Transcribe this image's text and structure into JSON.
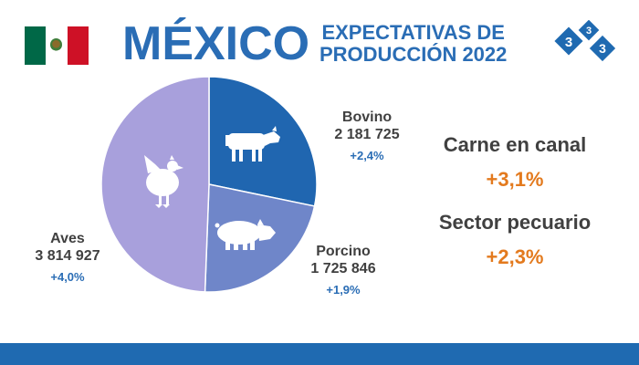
{
  "header": {
    "title": "MÉXICO",
    "subtitle_line1": "EXPECTATIVAS DE",
    "subtitle_line2": "PRODUCCIÓN 2022",
    "logo_digits": [
      "3",
      "3",
      "3"
    ]
  },
  "chart_data": {
    "type": "pie",
    "title": "",
    "categories": [
      "Bovino",
      "Porcino",
      "Aves"
    ],
    "values": [
      2181725,
      1725846,
      3814927
    ],
    "value_labels": [
      "2 181 725",
      "1 725 846",
      "3 814 927"
    ],
    "changes": [
      "+2,4%",
      "+1,9%",
      "+4,0%"
    ],
    "icons": [
      "cow-icon",
      "pig-icon",
      "chicken-icon"
    ],
    "colors": [
      "#2066b0",
      "#6f86c9",
      "#a8a0dc"
    ],
    "start_angle_deg": 0,
    "direction": "clockwise"
  },
  "stats": [
    {
      "title": "Carne en canal",
      "value": "+3,1%"
    },
    {
      "title": "Sector pecuario",
      "value": "+2,3%"
    }
  ],
  "colors": {
    "accent_blue": "#2a6db5",
    "accent_orange": "#e37a1e",
    "text_gray": "#404040",
    "footer_blue": "#1f6ab1"
  }
}
